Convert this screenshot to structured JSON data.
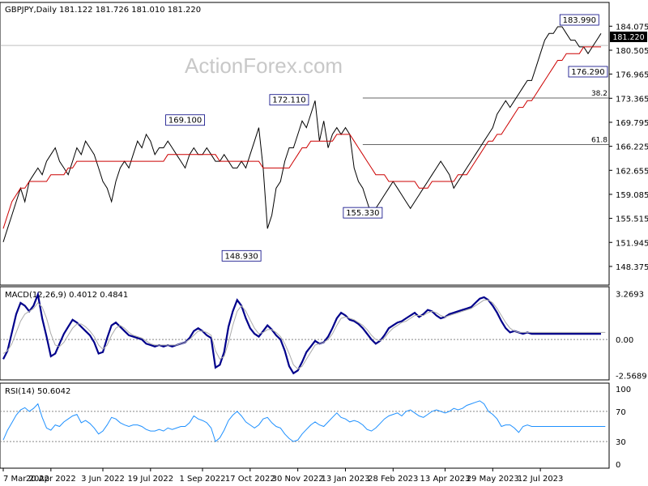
{
  "chart_data": [
    {
      "type": "line",
      "title": "GBPJPY,Daily  181.122 181.726 181.010 181.220",
      "watermark": "ActionForex.com",
      "current_price": "181.220",
      "ylim": [
        146.8,
        185.8
      ],
      "y_ticks": [
        "184.075",
        "180.505",
        "176.965",
        "173.365",
        "169.795",
        "166.225",
        "162.655",
        "159.085",
        "155.515",
        "151.945",
        "148.375"
      ],
      "annotations": [
        {
          "text": "183.990",
          "x": 133,
          "y": 183.99
        },
        {
          "text": "172.110",
          "x": 66,
          "y": 172.11
        },
        {
          "text": "169.100",
          "x": 42,
          "y": 169.1
        },
        {
          "text": "155.330",
          "x": 83,
          "y": 155.33
        },
        {
          "text": "148.930",
          "x": 55,
          "y": 148.93
        },
        {
          "text": "176.290",
          "x": 135,
          "y": 176.29
        }
      ],
      "fib_levels": [
        {
          "label": "38.2",
          "value": 173.4,
          "x_from": 83
        },
        {
          "label": "61.8",
          "value": 166.5,
          "x_from": 83
        }
      ],
      "series": [
        {
          "values": [
            152,
            154,
            156,
            158,
            160,
            158,
            161,
            162,
            163,
            162,
            164,
            165,
            166,
            164,
            163,
            162,
            164,
            166,
            165,
            167,
            166,
            165,
            163,
            161,
            160,
            158,
            161,
            163,
            164,
            163,
            165,
            167,
            166,
            168,
            167,
            165,
            166,
            166,
            167,
            166,
            165,
            164,
            163,
            165,
            166,
            165,
            165,
            166,
            165,
            164,
            164,
            165,
            164,
            163,
            163,
            164,
            163,
            165,
            167,
            169,
            163,
            154,
            156,
            160,
            161,
            164,
            166,
            166,
            168,
            170,
            169,
            171,
            173,
            167,
            170,
            166,
            168,
            169,
            168,
            169,
            168,
            163,
            161,
            160,
            158,
            156,
            157,
            158,
            159,
            160,
            161,
            160,
            159,
            158,
            157,
            158,
            159,
            160,
            161,
            162,
            163,
            164,
            163,
            162,
            160,
            161,
            162,
            163,
            164,
            165,
            166,
            167,
            168,
            169,
            171,
            172,
            173,
            172,
            173,
            174,
            175,
            176,
            176,
            178,
            180,
            182,
            183,
            183,
            184,
            184,
            183,
            182,
            182,
            181,
            181,
            180,
            181,
            182,
            183
          ]
        },
        {
          "values": [
            154,
            156,
            158,
            159,
            160,
            160,
            161,
            161,
            161,
            161,
            161,
            162,
            162,
            162,
            162,
            163,
            163,
            164,
            164,
            164,
            164,
            164,
            164,
            164,
            164,
            164,
            164,
            164,
            164,
            164,
            164,
            164,
            164,
            164,
            164,
            164,
            164,
            164,
            165,
            165,
            165,
            165,
            165,
            165,
            165,
            165,
            165,
            165,
            165,
            165,
            164,
            164,
            164,
            164,
            164,
            164,
            164,
            164,
            164,
            164,
            163,
            163,
            163,
            163,
            163,
            163,
            163,
            164,
            165,
            166,
            166,
            167,
            167,
            167,
            167,
            167,
            167,
            168,
            168,
            168,
            168,
            167,
            166,
            165,
            164,
            163,
            162,
            162,
            162,
            161,
            161,
            161,
            161,
            161,
            161,
            161,
            160,
            160,
            160,
            161,
            161,
            161,
            161,
            161,
            161,
            162,
            162,
            162,
            163,
            164,
            165,
            166,
            167,
            167,
            168,
            168,
            169,
            170,
            171,
            172,
            172,
            173,
            173,
            174,
            175,
            176,
            177,
            178,
            179,
            179,
            180,
            180,
            180,
            180,
            181,
            181,
            181,
            181,
            181
          ]
        }
      ],
      "x_tick_labels": [
        "7 Mar 2022",
        "20 Apr 2022",
        "3 Jun 2022",
        "19 Jul 2022",
        "1 Sep 2022",
        "17 Oct 2022",
        "30 Nov 2022",
        "13 Jan 2023",
        "28 Feb 2023",
        "13 Apr 2023",
        "29 May 2023",
        "12 Jul 2023"
      ],
      "x_tick_index": [
        0,
        11,
        23,
        34,
        46,
        57,
        68,
        79,
        90,
        102,
        113,
        124
      ]
    },
    {
      "type": "line",
      "title": "MACD(12,26,9) 0.4012 0.4841",
      "ylim": [
        -2.7,
        3.4
      ],
      "y_ticks": [
        "3.2693",
        "0.00",
        "-2.5689"
      ],
      "zero_line": 0,
      "series": [
        {
          "values": [
            -1.4,
            -0.8,
            0.5,
            1.8,
            2.6,
            2.4,
            2.0,
            2.4,
            3.2,
            1.5,
            0.2,
            -1.2,
            -1.0,
            -0.3,
            0.4,
            0.9,
            1.4,
            1.2,
            0.9,
            0.6,
            0.3,
            -0.2,
            -1.0,
            -0.9,
            0.1,
            1.0,
            1.2,
            0.9,
            0.6,
            0.3,
            0.2,
            0.1,
            0.0,
            -0.3,
            -0.4,
            -0.5,
            -0.4,
            -0.5,
            -0.4,
            -0.5,
            -0.4,
            -0.3,
            -0.2,
            0.1,
            0.6,
            0.8,
            0.6,
            0.3,
            0.1,
            -2.0,
            -1.8,
            -0.9,
            0.9,
            2.0,
            2.8,
            2.4,
            1.5,
            0.8,
            0.4,
            0.2,
            0.6,
            1.0,
            0.7,
            0.3,
            0.0,
            -0.8,
            -1.9,
            -2.4,
            -2.2,
            -1.6,
            -0.9,
            -0.5,
            -0.1,
            -0.3,
            -0.2,
            0.2,
            0.8,
            1.5,
            1.9,
            1.7,
            1.4,
            1.3,
            1.1,
            0.8,
            0.4,
            0.0,
            -0.3,
            -0.1,
            0.3,
            0.8,
            1.0,
            1.2,
            1.3,
            1.5,
            1.7,
            1.9,
            1.6,
            1.8,
            2.1,
            2.0,
            1.7,
            1.5,
            1.6,
            1.8,
            1.9,
            2.0,
            2.1,
            2.2,
            2.3,
            2.6,
            2.9,
            3.0,
            2.8,
            2.4,
            1.9,
            1.3,
            0.8,
            0.5,
            0.6,
            0.5,
            0.4,
            0.5,
            0.4,
            0.4,
            0.4,
            0.4,
            0.4,
            0.4,
            0.4,
            0.4,
            0.4,
            0.4,
            0.4,
            0.4,
            0.4,
            0.4,
            0.4,
            0.4,
            0.4
          ]
        },
        {
          "values": [
            -1.0,
            -0.8,
            -0.3,
            0.5,
            1.3,
            1.8,
            2.0,
            2.2,
            2.6,
            2.3,
            1.5,
            0.4,
            -0.4,
            -0.5,
            -0.2,
            0.3,
            0.8,
            1.1,
            1.1,
            0.9,
            0.6,
            0.2,
            -0.4,
            -0.7,
            -0.4,
            0.3,
            0.8,
            1.0,
            0.8,
            0.5,
            0.3,
            0.2,
            0.1,
            -0.1,
            -0.3,
            -0.4,
            -0.4,
            -0.4,
            -0.4,
            -0.4,
            -0.4,
            -0.3,
            -0.2,
            0.0,
            0.3,
            0.6,
            0.6,
            0.5,
            0.3,
            -0.8,
            -1.4,
            -1.2,
            -0.2,
            1.0,
            2.0,
            2.4,
            2.0,
            1.4,
            0.8,
            0.4,
            0.5,
            0.7,
            0.7,
            0.5,
            0.2,
            -0.3,
            -1.0,
            -1.8,
            -2.1,
            -1.9,
            -1.4,
            -0.9,
            -0.4,
            -0.3,
            -0.2,
            0.0,
            0.4,
            1.0,
            1.5,
            1.6,
            1.5,
            1.4,
            1.2,
            1.0,
            0.7,
            0.3,
            0.0,
            -0.1,
            0.1,
            0.5,
            0.8,
            1.0,
            1.2,
            1.3,
            1.5,
            1.7,
            1.7,
            1.7,
            1.9,
            2.0,
            1.9,
            1.7,
            1.6,
            1.7,
            1.8,
            1.9,
            2.0,
            2.1,
            2.2,
            2.4,
            2.6,
            2.8,
            2.8,
            2.6,
            2.2,
            1.7,
            1.2,
            0.8,
            0.6,
            0.5,
            0.5,
            0.5,
            0.5,
            0.5,
            0.5,
            0.5,
            0.5,
            0.5,
            0.5,
            0.5,
            0.5,
            0.5,
            0.5,
            0.5,
            0.5,
            0.5,
            0.5,
            0.5,
            0.5,
            0.5
          ]
        }
      ]
    },
    {
      "type": "line",
      "title": "RSI(14) 50.6042",
      "ylim": [
        0,
        100
      ],
      "y_ticks": [
        "100",
        "70",
        "30",
        "0"
      ],
      "levels": [
        70,
        30
      ],
      "series": [
        {
          "values": [
            32,
            45,
            55,
            65,
            72,
            75,
            70,
            74,
            80,
            62,
            48,
            45,
            52,
            50,
            56,
            60,
            64,
            66,
            55,
            58,
            54,
            48,
            40,
            44,
            52,
            62,
            60,
            55,
            52,
            50,
            52,
            52,
            50,
            46,
            44,
            44,
            46,
            44,
            48,
            46,
            48,
            50,
            50,
            55,
            64,
            60,
            58,
            55,
            48,
            30,
            35,
            45,
            58,
            65,
            70,
            64,
            56,
            52,
            48,
            52,
            60,
            62,
            55,
            50,
            48,
            40,
            34,
            30,
            32,
            40,
            46,
            52,
            56,
            52,
            50,
            56,
            62,
            68,
            62,
            60,
            56,
            58,
            56,
            52,
            46,
            44,
            48,
            54,
            60,
            64,
            66,
            68,
            64,
            70,
            72,
            68,
            64,
            62,
            66,
            70,
            72,
            70,
            68,
            70,
            74,
            72,
            74,
            78,
            80,
            82,
            84,
            80,
            70,
            66,
            60,
            50,
            52,
            52,
            48,
            42,
            50,
            52,
            50,
            50,
            50,
            50,
            50,
            50,
            50,
            50,
            50,
            50,
            50,
            50,
            50,
            50,
            50,
            50,
            50,
            50
          ]
        }
      ]
    }
  ]
}
